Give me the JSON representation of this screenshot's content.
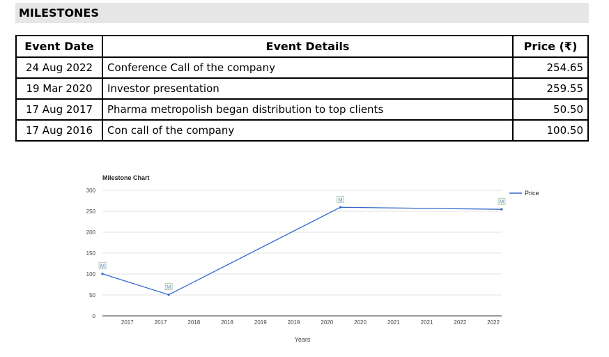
{
  "section": {
    "title": "MILESTONES"
  },
  "table": {
    "headers": {
      "date": "Event Date",
      "details": "Event Details",
      "price": "Price (₹)"
    },
    "rows": [
      {
        "date": "24 Aug 2022",
        "details": "Conference Call of the company",
        "price": "254.65"
      },
      {
        "date": "19 Mar 2020",
        "details": "Investor presentation",
        "price": "259.55"
      },
      {
        "date": "17 Aug 2017",
        "details": "Pharma metropolish began distribution to top clients",
        "price": "50.50"
      },
      {
        "date": "17 Aug 2016",
        "details": "Con call of the company",
        "price": "100.50"
      }
    ]
  },
  "chart_data": {
    "type": "line",
    "title": "Milestone Chart",
    "xlabel": "Years",
    "ylabel": "",
    "ylim": [
      0,
      300
    ],
    "yticks": [
      0,
      50,
      100,
      150,
      200,
      250,
      300
    ],
    "xlim": [
      "2016-08-17",
      "2022-08-24"
    ],
    "xtick_labels": [
      "2017",
      "2017",
      "2018",
      "2018",
      "2019",
      "2019",
      "2020",
      "2020",
      "2021",
      "2021",
      "2022",
      "2022"
    ],
    "grid": true,
    "legend": "top-right",
    "series": [
      {
        "name": "Price",
        "color": "#3366cc",
        "points": [
          {
            "x": "2016-08-17",
            "y": 100.5,
            "marker": "M"
          },
          {
            "x": "2017-08-17",
            "y": 50.5,
            "marker": "M"
          },
          {
            "x": "2020-03-19",
            "y": 259.55,
            "marker": "M"
          },
          {
            "x": "2022-08-24",
            "y": 254.65,
            "marker": "M"
          }
        ]
      }
    ]
  }
}
